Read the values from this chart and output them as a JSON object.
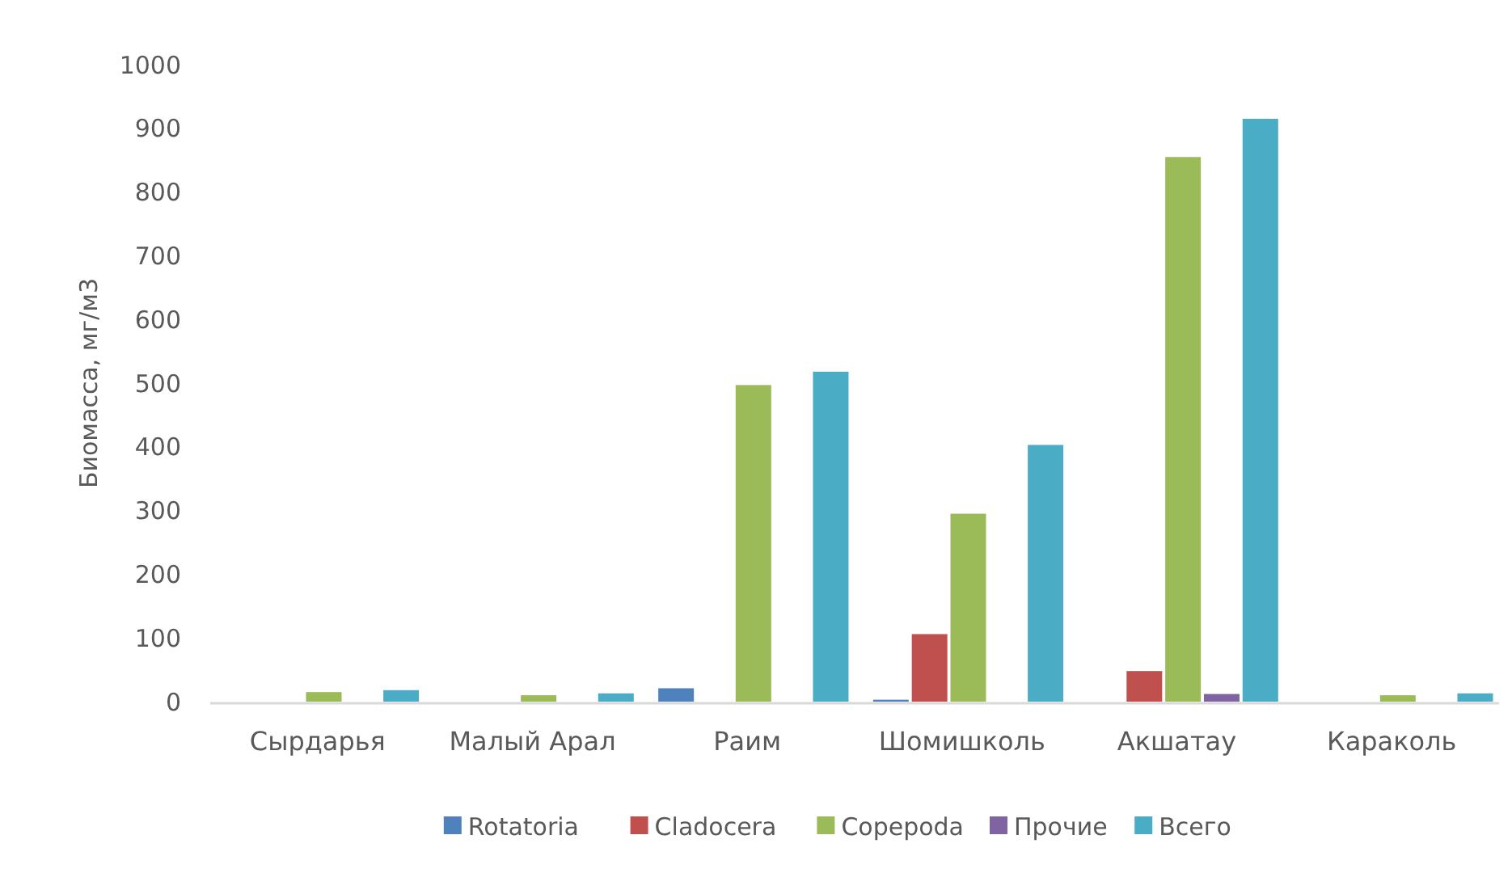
{
  "chart_data": {
    "type": "bar",
    "ylabel": "Биомасса, мг/м3",
    "categories": [
      "Сырдарья",
      "Малый Арал",
      "Раим",
      "Шомишколь",
      "Акшатау",
      "Караколь"
    ],
    "series": [
      {
        "name": "Rotatoria",
        "color": "#4f81bd",
        "values": [
          null,
          null,
          21,
          3,
          0,
          null
        ]
      },
      {
        "name": "Cladocera",
        "color": "#c0504d",
        "values": [
          0,
          0,
          0,
          106,
          48,
          0
        ]
      },
      {
        "name": "Copepoda",
        "color": "#9bbb59",
        "values": [
          15,
          10,
          497,
          295,
          855,
          10
        ]
      },
      {
        "name": "Прочие",
        "color": "#8064a2",
        "values": [
          0,
          0,
          0,
          0,
          12,
          0
        ]
      },
      {
        "name": "Всего",
        "color": "#4bacc6",
        "values": [
          18,
          13,
          518,
          403,
          915,
          13
        ]
      }
    ],
    "ylim": [
      0,
      1000
    ],
    "yticks": [
      0,
      100,
      200,
      300,
      400,
      500,
      600,
      700,
      800,
      900,
      1000
    ],
    "grid": false,
    "legend": "bottom"
  }
}
